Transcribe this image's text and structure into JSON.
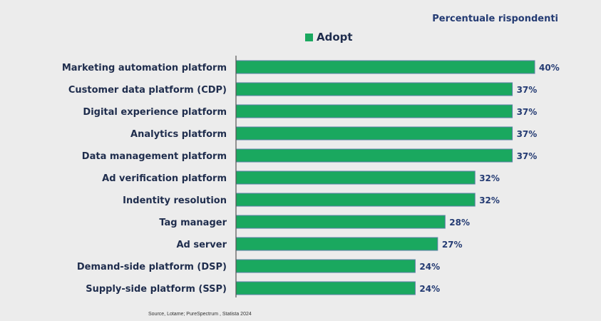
{
  "subtitle": "Percentuale rispondenti",
  "source": "Source, Lotame; PureSpectrum , Statista 2024",
  "colors": {
    "bar": "#1aa85f",
    "bar_border": "#5b7fa6",
    "label": "#1f2d4d",
    "value_label": "#243b73",
    "subtitle": "#243b73",
    "axis": "#555555",
    "background": "#ececec"
  },
  "chart_data": {
    "type": "bar",
    "orientation": "horizontal",
    "title": "",
    "subtitle": "Percentuale rispondenti",
    "xlabel": "",
    "ylabel": "",
    "xlim": [
      0,
      40
    ],
    "grid": false,
    "legend": {
      "position": "top-center",
      "entries": [
        "Adopt"
      ]
    },
    "categories": [
      "Marketing automation platform",
      "Customer data platform (CDP)",
      "Digital experience platform",
      "Analytics platform",
      "Data management platform",
      "Ad verification platform",
      "Indentity resolution",
      "Tag manager",
      "Ad server",
      "Demand-side platform (DSP)",
      "Supply-side platform (SSP)"
    ],
    "series": [
      {
        "name": "Adopt",
        "values": [
          40,
          37,
          37,
          37,
          37,
          32,
          32,
          28,
          27,
          24,
          24
        ],
        "value_labels": [
          "40%",
          "37%",
          "37%",
          "37%",
          "37%",
          "32%",
          "32%",
          "28%",
          "27%",
          "24%",
          "24%"
        ]
      }
    ]
  }
}
